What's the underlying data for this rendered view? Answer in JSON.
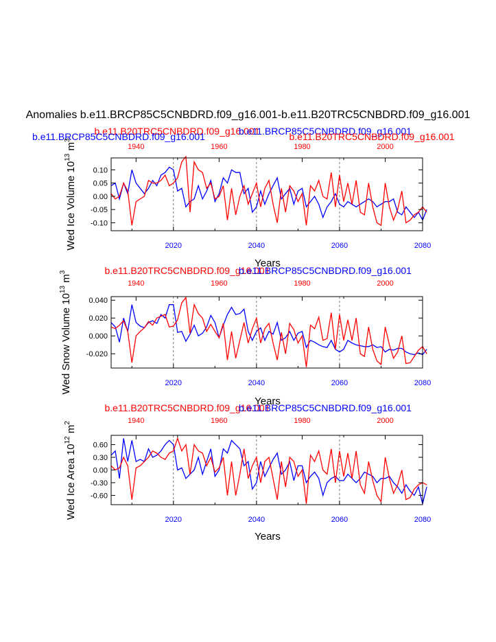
{
  "colors": {
    "red": "#ff0000",
    "blue": "#0000ff",
    "black": "#000000"
  },
  "chart_data": {
    "type": "line",
    "title": "Anomalies b.e11.BRCP85C5CNBDRD.f09_g16.001-b.e11.B20TRC5CNBDRD.f09_g16.001",
    "xlabel": "Years",
    "bottom_axis": {
      "range": [
        2005,
        2080
      ],
      "ticks": [
        "2020",
        "2040",
        "2060",
        "2080"
      ],
      "color": "#0000ff"
    },
    "top_axis": {
      "range": [
        1934,
        2009
      ],
      "ticks": [
        "1940",
        "1960",
        "1980",
        "2000"
      ],
      "color": "#ff0000"
    },
    "panels": [
      {
        "id": "ice_volume",
        "ylabel": "Wed Ice Volume 10",
        "ylabel_exp": "13",
        "ylabel_unit": " m",
        "ylabel_unit_exp": "3",
        "ylim": [
          -0.13,
          0.145
        ],
        "yticks": [
          "0.10",
          "0.05",
          "0.00",
          "-0.05",
          "-0.10"
        ],
        "legend": [
          {
            "name": "b.e11.B20TRC5CNBDRD.f09_g16.001",
            "color": "#ff0000"
          },
          {
            "name": "b.e11.BRCP85C5CNBDRD.f09_g16.001",
            "color": "#0000ff"
          },
          {
            "name": "b.e11.BRCP85C5CNBDRD.f09_g16.001",
            "color": "#0000ff"
          },
          {
            "name": "b.e11.B20TRC5CNBDRD.f09_g16.001",
            "color": "#ff0000"
          }
        ],
        "series": [
          {
            "name": "b.e11.BRCP85C5CNBDRD.f09_g16.001",
            "color": "#0000ff",
            "values": [
              0.04,
              0.05,
              -0.01,
              0.05,
              0.01,
              0.1,
              0.05,
              0.03,
              0.01,
              0.03,
              0.06,
              0.04,
              0.08,
              0.09,
              0.11,
              0.1,
              0.02,
              0.03,
              -0.04,
              -0.02,
              -0.01,
              0.04,
              -0.01,
              0.02,
              0.06,
              -0.02,
              0.01,
              0.07,
              0.05,
              0.1,
              0.09,
              0.09,
              0.01,
              0.03,
              -0.06,
              -0.04,
              0.02,
              -0.03,
              0.01,
              0.04,
              0.07,
              -0.01,
              0.01,
              0.03,
              -0.03,
              0.02,
              0.03,
              -0.04,
              -0.02,
              0.0,
              -0.03,
              -0.08,
              -0.04,
              -0.02,
              0.01,
              -0.03,
              -0.04,
              -0.02,
              -0.03,
              -0.04,
              -0.03,
              -0.02,
              -0.01,
              -0.02,
              -0.04,
              -0.03,
              -0.02,
              -0.02,
              -0.01,
              -0.06,
              -0.07,
              -0.04,
              -0.06,
              -0.08,
              -0.06,
              -0.09,
              -0.05
            ]
          },
          {
            "name": "b.e11.B20TRC5CNBDRD.f09_g16.001",
            "color": "#ff0000",
            "values": [
              0.01,
              -0.01,
              0.0,
              0.05,
              0.02,
              -0.11,
              -0.02,
              -0.01,
              0.0,
              0.06,
              0.05,
              0.05,
              0.06,
              0.08,
              0.04,
              0.05,
              0.07,
              0.13,
              0.15,
              -0.06,
              0.13,
              0.1,
              0.09,
              0.03,
              0.05,
              -0.01,
              0.0,
              0.04,
              -0.09,
              0.03,
              -0.07,
              0.0,
              0.04,
              -0.03,
              0.01,
              0.05,
              -0.04,
              0.03,
              0.06,
              -0.03,
              -0.1,
              0.03,
              -0.06,
              0.04,
              0.02,
              -0.02,
              0.01,
              -0.11,
              0.04,
              0.02,
              0.06,
              -0.0,
              -0.01,
              0.09,
              -0.04,
              0.08,
              -0.02,
              0.05,
              -0.03,
              0.06,
              -0.06,
              -0.07,
              0.05,
              -0.04,
              -0.1,
              -0.11,
              0.05,
              -0.04,
              -0.09,
              -0.05,
              0.02,
              -0.1,
              -0.09,
              -0.07,
              -0.06,
              -0.04,
              -0.06
            ]
          }
        ]
      },
      {
        "id": "snow_volume",
        "ylabel": "Wed Snow Volume 10",
        "ylabel_exp": "13",
        "ylabel_unit": " m",
        "ylabel_unit_exp": "3",
        "ylim": [
          -0.036,
          0.044
        ],
        "yticks": [
          "0.040",
          "0.020",
          "0.000",
          "-0.020"
        ],
        "legend": [
          {
            "name": "b.e11.B20TRC5CNBDRD.f09_g16.001",
            "color": "#ff0000"
          },
          {
            "name": "b.e11.BRCP85C5CNBDRD.f09_g16.001",
            "color": "#0000ff"
          }
        ],
        "series": [
          {
            "name": "b.e11.BRCP85C5CNBDRD.f09_g16.001",
            "color": "#0000ff",
            "values": [
              0.015,
              0.01,
              -0.007,
              0.02,
              0.005,
              0.035,
              0.015,
              0.011,
              0.009,
              0.015,
              0.017,
              0.014,
              0.024,
              0.02,
              0.035,
              0.035,
              0.004,
              0.005,
              -0.006,
              0.002,
              0.012,
              0.0,
              0.003,
              0.01,
              0.023,
              0.015,
              -0.002,
              0.012,
              0.024,
              0.032,
              0.024,
              0.025,
              0.03,
              0.005,
              -0.005,
              0.005,
              0.009,
              -0.005,
              0.005,
              0.002,
              0.015,
              -0.005,
              -0.002,
              0.005,
              -0.005,
              0.003,
              0.005,
              -0.013,
              -0.005,
              -0.007,
              -0.01,
              -0.012,
              -0.013,
              -0.005,
              -0.015,
              -0.018,
              -0.015,
              -0.005,
              -0.008,
              -0.01,
              -0.011,
              -0.012,
              -0.012,
              -0.01,
              -0.013,
              -0.012,
              -0.018,
              -0.015,
              -0.016,
              -0.014,
              -0.014,
              -0.018,
              -0.02,
              -0.021,
              -0.019,
              -0.021,
              -0.015
            ]
          },
          {
            "name": "b.e11.B20TRC5CNBDRD.f09_g16.001",
            "color": "#ff0000",
            "values": [
              0.01,
              0.008,
              0.012,
              0.017,
              0.005,
              -0.03,
              0.0,
              0.005,
              0.009,
              0.016,
              0.012,
              0.02,
              0.022,
              0.024,
              0.01,
              0.011,
              0.018,
              0.037,
              0.043,
              0.003,
              0.035,
              0.025,
              0.02,
              0.005,
              0.013,
              0.005,
              -0.002,
              0.014,
              -0.027,
              0.005,
              -0.025,
              -0.005,
              0.015,
              -0.008,
              0.008,
              0.02,
              -0.008,
              0.008,
              0.014,
              -0.008,
              -0.027,
              0.004,
              -0.02,
              0.014,
              0.007,
              -0.008,
              0.0,
              -0.035,
              0.012,
              0.008,
              0.021,
              -0.005,
              -0.003,
              0.026,
              -0.015,
              0.024,
              -0.005,
              0.018,
              -0.005,
              0.02,
              -0.02,
              -0.023,
              0.01,
              -0.015,
              -0.028,
              -0.032,
              0.01,
              -0.01,
              -0.025,
              -0.018,
              0.0,
              -0.031,
              -0.03,
              -0.023,
              -0.016,
              -0.012,
              -0.02
            ]
          }
        ]
      },
      {
        "id": "ice_area",
        "ylabel": "Wed Ice Area 10",
        "ylabel_exp": "12",
        "ylabel_unit": " m",
        "ylabel_unit_exp": "2",
        "ylim": [
          -0.82,
          0.82
        ],
        "yticks": [
          "0.60",
          "0.30",
          "0.00",
          "-0.30",
          "-0.60"
        ],
        "legend": [
          {
            "name": "b.e11.B20TRC5CNBDRD.f09_g16.001",
            "color": "#ff0000"
          },
          {
            "name": "b.e11.BRCP85C5CNBDRD.f09_g16.001",
            "color": "#0000ff"
          }
        ],
        "series": [
          {
            "name": "b.e11.BRCP85C5CNBDRD.f09_g16.001",
            "color": "#0000ff",
            "values": [
              0.35,
              0.45,
              -0.2,
              0.75,
              0.2,
              0.7,
              0.2,
              0.25,
              0.2,
              0.5,
              0.3,
              0.35,
              0.45,
              0.6,
              0.7,
              0.6,
              0.0,
              0.05,
              -0.2,
              -0.1,
              0.0,
              0.3,
              -0.1,
              0.2,
              0.5,
              -0.15,
              0.0,
              0.5,
              0.4,
              0.7,
              0.6,
              0.5,
              0.1,
              0.2,
              -0.45,
              -0.3,
              0.2,
              -0.15,
              0.05,
              0.25,
              0.4,
              -0.1,
              0.0,
              0.2,
              -0.25,
              0.1,
              0.1,
              -0.3,
              -0.15,
              -0.05,
              -0.2,
              -0.6,
              -0.3,
              -0.2,
              -0.15,
              -0.25,
              -0.25,
              -0.1,
              -0.2,
              -0.3,
              -0.2,
              -0.05,
              -0.1,
              -0.15,
              -0.3,
              -0.2,
              -0.2,
              -0.15,
              -0.3,
              -0.4,
              -0.55,
              -0.35,
              -0.5,
              -0.6,
              -0.4,
              -0.8,
              -0.4
            ]
          },
          {
            "name": "b.e11.B20TRC5CNBDRD.f09_g16.001",
            "color": "#ff0000",
            "values": [
              0.1,
              0.0,
              0.05,
              0.3,
              0.1,
              -0.7,
              0.05,
              0.1,
              0.2,
              0.3,
              0.45,
              0.4,
              0.3,
              0.25,
              0.4,
              0.45,
              0.75,
              0.45,
              0.6,
              -0.1,
              0.6,
              0.45,
              0.4,
              0.1,
              0.3,
              -0.05,
              0.05,
              0.3,
              -0.6,
              0.2,
              -0.6,
              -0.1,
              0.5,
              -0.2,
              0.1,
              0.3,
              -0.3,
              0.2,
              0.3,
              -0.2,
              -0.7,
              0.2,
              -0.4,
              0.3,
              0.2,
              -0.15,
              0.0,
              -0.8,
              0.35,
              0.2,
              0.45,
              0.0,
              -0.1,
              0.5,
              -0.3,
              0.45,
              -0.15,
              0.4,
              -0.2,
              0.45,
              -0.35,
              -0.55,
              0.2,
              -0.25,
              -0.6,
              -0.75,
              0.3,
              -0.2,
              -0.55,
              -0.35,
              0.0,
              -0.7,
              -0.65,
              -0.45,
              -0.35,
              -0.3,
              -0.35
            ]
          }
        ]
      }
    ]
  }
}
